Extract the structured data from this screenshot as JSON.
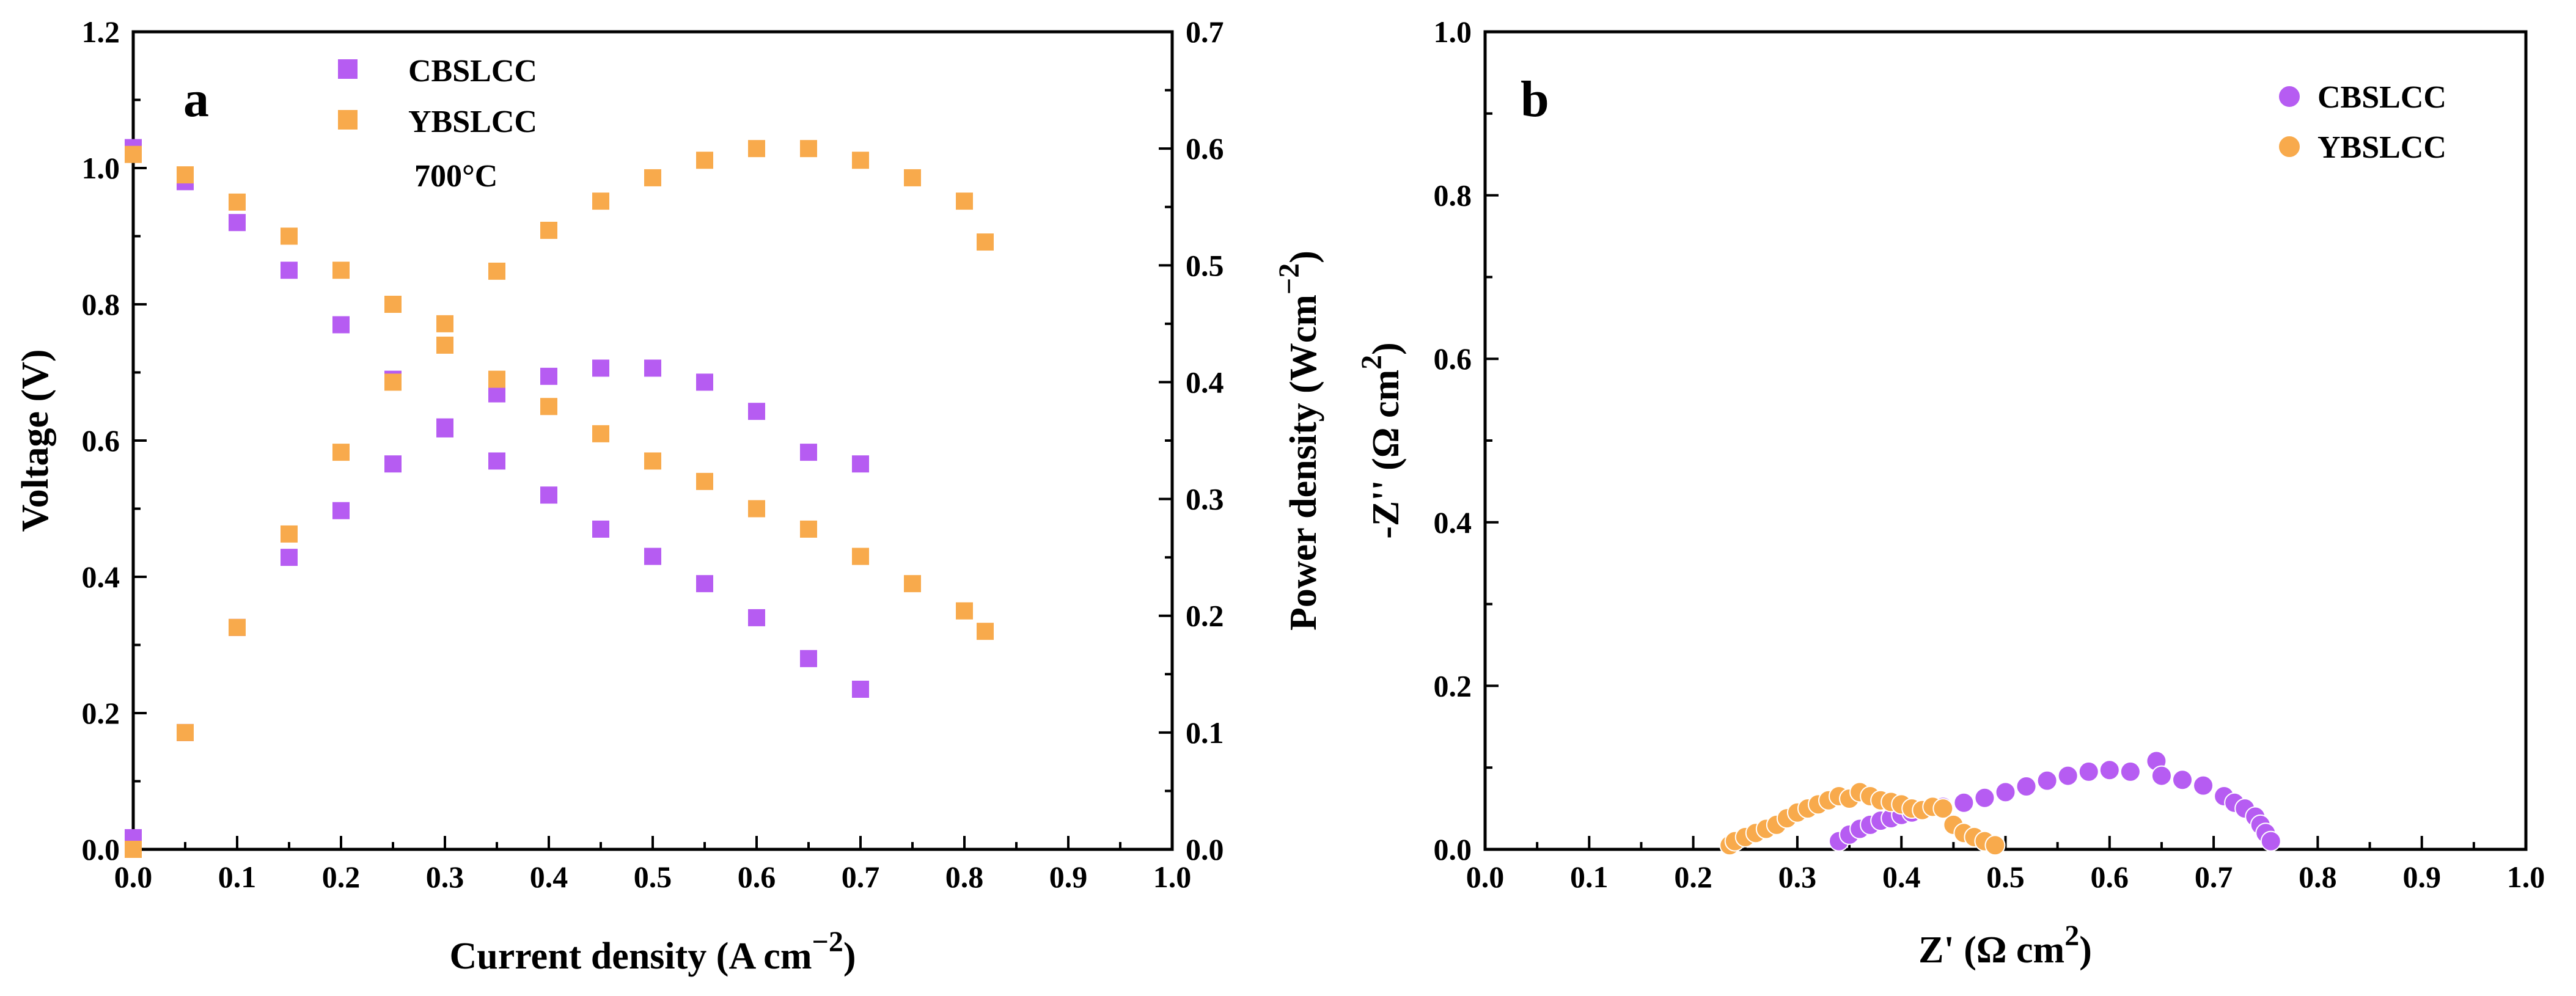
{
  "colors": {
    "purple": "#b65cf2",
    "orange": "#f8aa4c"
  },
  "chart_data": [
    {
      "type": "scatter",
      "panel_label": "a",
      "xlabel": "Current density (A cm",
      "xlabel_sup": "−2",
      "xlabel_tail": ")",
      "ylabel": "Voltage (V)",
      "y2label": "Power density (Wcm",
      "y2label_sup": "−2",
      "y2label_tail": ")",
      "annotation": "700°C",
      "xlim": [
        0,
        1.0
      ],
      "ylim": [
        0,
        1.2
      ],
      "y2lim": [
        0,
        0.7
      ],
      "x_ticks": [
        "0.0",
        "0.1",
        "0.2",
        "0.3",
        "0.4",
        "0.5",
        "0.6",
        "0.7",
        "0.8",
        "0.9",
        "1.0"
      ],
      "y_ticks": [
        "0.0",
        "0.2",
        "0.4",
        "0.6",
        "0.8",
        "1.0",
        "1.2"
      ],
      "y2_ticks": [
        "0.0",
        "0.1",
        "0.2",
        "0.3",
        "0.4",
        "0.5",
        "0.6",
        "0.7"
      ],
      "series": [
        {
          "name": "CBSLCC",
          "color": "purple",
          "kind": "voltage",
          "x": [
            0.0,
            0.05,
            0.1,
            0.15,
            0.2,
            0.25,
            0.3,
            0.35,
            0.4,
            0.45,
            0.5,
            0.55,
            0.6,
            0.65,
            0.7
          ],
          "y": [
            1.03,
            0.98,
            0.92,
            0.85,
            0.77,
            0.69,
            0.62,
            0.57,
            0.52,
            0.47,
            0.43,
            0.39,
            0.34,
            0.28,
            0.235
          ]
        },
        {
          "name": "CBSLCC",
          "color": "purple",
          "kind": "power",
          "x": [
            0.0,
            0.05,
            0.1,
            0.15,
            0.2,
            0.25,
            0.3,
            0.35,
            0.4,
            0.45,
            0.5,
            0.55,
            0.6,
            0.65,
            0.7
          ],
          "y": [
            0.01,
            0.1,
            0.19,
            0.25,
            0.29,
            0.33,
            0.36,
            0.39,
            0.405,
            0.412,
            0.412,
            0.4,
            0.375,
            0.34,
            0.33
          ]
        },
        {
          "name": "YBSLCC",
          "color": "orange",
          "kind": "voltage",
          "x": [
            0.0,
            0.05,
            0.1,
            0.15,
            0.2,
            0.25,
            0.3,
            0.35,
            0.4,
            0.45,
            0.5,
            0.55,
            0.6,
            0.65,
            0.7,
            0.75,
            0.8,
            0.82
          ],
          "y": [
            1.02,
            0.99,
            0.95,
            0.9,
            0.85,
            0.8,
            0.74,
            0.69,
            0.65,
            0.61,
            0.57,
            0.54,
            0.5,
            0.47,
            0.43,
            0.39,
            0.35,
            0.32
          ]
        },
        {
          "name": "YBSLCC",
          "color": "orange",
          "kind": "power",
          "x": [
            0.0,
            0.05,
            0.1,
            0.15,
            0.2,
            0.25,
            0.3,
            0.35,
            0.4,
            0.45,
            0.5,
            0.55,
            0.6,
            0.65,
            0.7,
            0.75,
            0.8,
            0.82
          ],
          "y": [
            0.0,
            0.1,
            0.19,
            0.27,
            0.34,
            0.4,
            0.45,
            0.495,
            0.53,
            0.555,
            0.575,
            0.59,
            0.6,
            0.6,
            0.59,
            0.575,
            0.555,
            0.52
          ]
        }
      ],
      "legend": [
        {
          "name": "CBSLCC",
          "color": "purple"
        },
        {
          "name": "YBSLCC",
          "color": "orange"
        }
      ]
    },
    {
      "type": "scatter",
      "panel_label": "b",
      "xlabel": "Z' (Ω  cm",
      "xlabel_sup": "2",
      "xlabel_tail": ")",
      "ylabel": "-Z'' (Ω  cm",
      "ylabel_sup": "2",
      "ylabel_tail": ")",
      "xlim": [
        0,
        1.0
      ],
      "ylim": [
        0,
        1.0
      ],
      "x_ticks": [
        "0.0",
        "0.1",
        "0.2",
        "0.3",
        "0.4",
        "0.5",
        "0.6",
        "0.7",
        "0.8",
        "0.9",
        "1.0"
      ],
      "y_ticks": [
        "0.0",
        "0.2",
        "0.4",
        "0.6",
        "0.8",
        "1.0"
      ],
      "series": [
        {
          "name": "CBSLCC",
          "color": "purple",
          "x": [
            0.34,
            0.35,
            0.36,
            0.37,
            0.38,
            0.39,
            0.4,
            0.41,
            0.42,
            0.44,
            0.46,
            0.48,
            0.5,
            0.52,
            0.54,
            0.56,
            0.58,
            0.6,
            0.62,
            0.645,
            0.65,
            0.67,
            0.69,
            0.71,
            0.72,
            0.73,
            0.74,
            0.745,
            0.75,
            0.755
          ],
          "y": [
            0.01,
            0.018,
            0.025,
            0.03,
            0.035,
            0.038,
            0.042,
            0.045,
            0.048,
            0.052,
            0.057,
            0.063,
            0.07,
            0.077,
            0.084,
            0.09,
            0.095,
            0.097,
            0.095,
            0.108,
            0.09,
            0.085,
            0.078,
            0.065,
            0.057,
            0.05,
            0.04,
            0.03,
            0.02,
            0.01
          ]
        },
        {
          "name": "YBSLCC",
          "color": "orange",
          "x": [
            0.235,
            0.24,
            0.25,
            0.26,
            0.27,
            0.28,
            0.29,
            0.3,
            0.31,
            0.32,
            0.33,
            0.34,
            0.35,
            0.36,
            0.37,
            0.38,
            0.39,
            0.4,
            0.41,
            0.42,
            0.43,
            0.44,
            0.45,
            0.46,
            0.47,
            0.48,
            0.49
          ],
          "y": [
            0.005,
            0.01,
            0.015,
            0.02,
            0.025,
            0.03,
            0.038,
            0.045,
            0.05,
            0.055,
            0.06,
            0.065,
            0.062,
            0.07,
            0.065,
            0.06,
            0.058,
            0.055,
            0.05,
            0.048,
            0.052,
            0.05,
            0.03,
            0.02,
            0.015,
            0.01,
            0.005
          ]
        }
      ],
      "legend": [
        {
          "name": "CBSLCC",
          "color": "purple"
        },
        {
          "name": "YBSLCC",
          "color": "orange"
        }
      ]
    }
  ]
}
